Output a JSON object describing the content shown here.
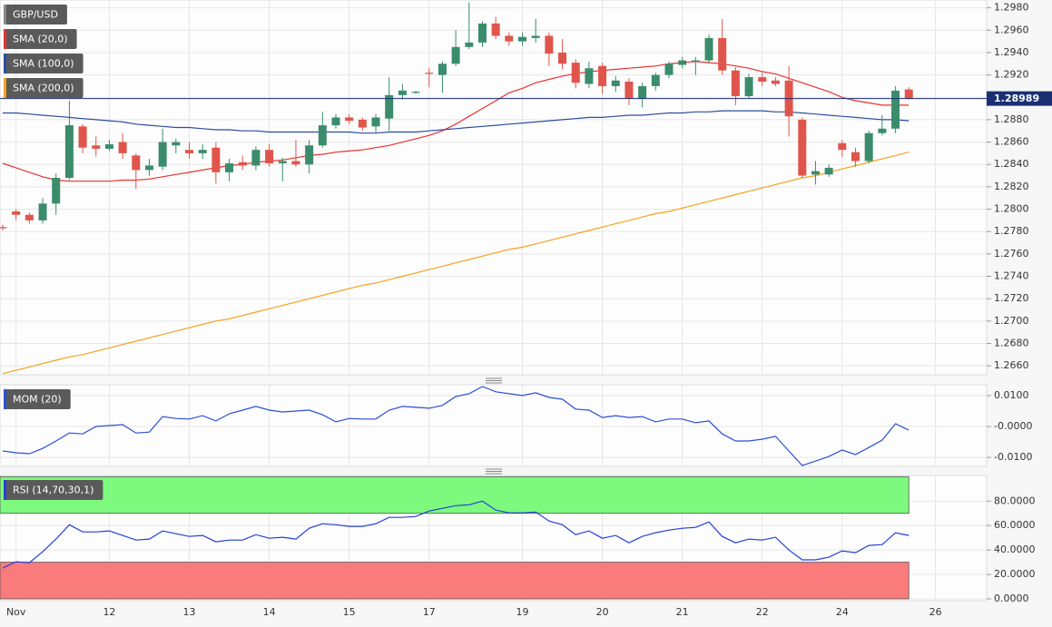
{
  "chart_data": [
    {
      "type": "candlestick",
      "name": "GBP/USD",
      "up_color": "#3b8c6c",
      "down_color": "#e0554b",
      "last_color": "#1b2f73",
      "categories": [
        null,
        "Nov",
        null,
        null,
        null,
        null,
        null,
        null,
        "12",
        null,
        null,
        null,
        null,
        null,
        "13",
        null,
        null,
        null,
        null,
        null,
        "14",
        null,
        null,
        null,
        null,
        null,
        "15",
        null,
        null,
        null,
        null,
        null,
        "17",
        null,
        null,
        null,
        null,
        null,
        null,
        "19",
        null,
        null,
        null,
        null,
        null,
        "20",
        null,
        null,
        null,
        null,
        null,
        "21",
        null,
        null,
        null,
        null,
        null,
        "22",
        null,
        null,
        null,
        null,
        null,
        "24",
        null,
        null,
        null,
        null,
        null,
        null,
        "26"
      ],
      "open": [
        1.2784,
        1.2798,
        1.2795,
        1.279,
        1.2805,
        1.2828,
        1.2874,
        1.2857,
        1.2854,
        1.286,
        1.2848,
        1.2835,
        1.2838,
        1.2857,
        1.2853,
        1.285,
        1.2855,
        1.2833,
        1.2842,
        1.2839,
        1.2853,
        1.2841,
        1.2843,
        1.284,
        1.2857,
        1.2875,
        1.2882,
        1.288,
        1.2874,
        1.2881,
        1.2902,
        1.2904,
        1.2922,
        1.292,
        1.293,
        1.2945,
        1.2949,
        1.2966,
        1.2955,
        1.295,
        1.2953,
        1.2955,
        1.294,
        1.2931,
        1.2912,
        1.2928,
        1.291,
        1.2914,
        1.2899,
        1.291,
        1.292,
        1.2929,
        1.2932,
        1.2933,
        1.2953,
        1.2924,
        1.2901,
        1.2918,
        1.2915,
        1.2915,
        1.288,
        1.2831,
        1.2831,
        1.2859,
        1.2851,
        1.2843,
        1.2868,
        1.2872,
        1.2907,
        null,
        null
      ],
      "high": [
        1.2786,
        1.28,
        1.2797,
        1.281,
        1.2832,
        1.2897,
        1.2876,
        1.2865,
        1.2862,
        1.2868,
        1.285,
        1.2845,
        1.2872,
        1.2863,
        1.286,
        1.2858,
        1.286,
        1.2845,
        1.2848,
        1.2856,
        1.2858,
        1.2846,
        1.2862,
        1.2862,
        1.2887,
        1.2885,
        1.2885,
        1.2882,
        1.2885,
        1.2918,
        1.2912,
        1.2906,
        1.2926,
        1.2932,
        1.296,
        1.2985,
        1.2968,
        1.2972,
        1.2958,
        1.2958,
        1.297,
        1.2958,
        1.2952,
        1.2934,
        1.2932,
        1.2931,
        1.2919,
        1.2917,
        1.2913,
        1.2922,
        1.2932,
        1.2936,
        1.2936,
        1.2956,
        1.297,
        1.2927,
        1.2921,
        1.2922,
        1.2918,
        1.2928,
        1.2882,
        1.2843,
        1.284,
        1.2862,
        1.2855,
        1.287,
        1.2884,
        1.291,
        1.2909,
        null,
        null
      ],
      "low": [
        1.2781,
        1.279,
        1.2787,
        1.2787,
        1.2795,
        1.2826,
        1.285,
        1.2847,
        1.2852,
        1.2845,
        1.2818,
        1.283,
        1.2835,
        1.285,
        1.2845,
        1.2845,
        1.2823,
        1.2825,
        1.2835,
        1.2835,
        1.2838,
        1.2825,
        1.2838,
        1.2832,
        1.2855,
        1.2872,
        1.2876,
        1.287,
        1.2868,
        1.287,
        1.2898,
        1.2903,
        1.2909,
        1.2904,
        1.2928,
        1.2943,
        1.2945,
        1.2952,
        1.2946,
        1.2946,
        1.2949,
        1.2928,
        1.2925,
        1.2908,
        1.2908,
        1.2903,
        1.2905,
        1.2893,
        1.2891,
        1.2906,
        1.2917,
        1.2926,
        1.292,
        1.293,
        1.292,
        1.2893,
        1.2899,
        1.291,
        1.291,
        1.2865,
        1.2828,
        1.2822,
        1.2829,
        1.2847,
        1.2838,
        1.2841,
        1.2866,
        1.2868,
        1.2898,
        null,
        null
      ],
      "close": [
        1.2783,
        1.2795,
        1.279,
        1.2805,
        1.2828,
        1.2875,
        1.2855,
        1.2854,
        1.2858,
        1.285,
        1.2835,
        1.2839,
        1.286,
        1.286,
        1.285,
        1.2853,
        1.2833,
        1.2841,
        1.2839,
        1.2853,
        1.2841,
        1.2843,
        1.284,
        1.2857,
        1.2875,
        1.2882,
        1.2879,
        1.2873,
        1.2882,
        1.2902,
        1.2906,
        1.2905,
        1.2921,
        1.293,
        1.2945,
        1.2949,
        1.2966,
        1.2955,
        1.295,
        1.2954,
        1.2955,
        1.2939,
        1.293,
        1.2913,
        1.2926,
        1.291,
        1.2915,
        1.2899,
        1.291,
        1.292,
        1.293,
        1.2933,
        1.2933,
        1.2953,
        1.2924,
        1.2901,
        1.2918,
        1.2914,
        1.2912,
        1.2883,
        1.283,
        1.2834,
        1.2837,
        1.2853,
        1.2843,
        1.2868,
        1.2872,
        1.2906,
        1.28989,
        null,
        null
      ],
      "series": [
        {
          "name": "SMA (20,0)",
          "color": "#e8322f",
          "values": [
            1.2841,
            1.2837,
            1.2833,
            1.2829,
            1.2826,
            1.2825,
            1.2825,
            1.2825,
            1.2825,
            1.2826,
            1.2826,
            1.2827,
            1.2829,
            1.2831,
            1.2833,
            1.2835,
            1.2837,
            1.2839,
            1.284,
            1.2842,
            1.2843,
            1.2844,
            1.2846,
            1.2848,
            1.2849,
            1.2851,
            1.2852,
            1.2853,
            1.2855,
            1.2857,
            1.286,
            1.2863,
            1.2866,
            1.287,
            1.2876,
            1.2883,
            1.289,
            1.2897,
            1.2904,
            1.2908,
            1.2913,
            1.2916,
            1.2919,
            1.2921,
            1.2923,
            1.2924,
            1.2925,
            1.2926,
            1.2927,
            1.2928,
            1.293,
            1.2931,
            1.2932,
            1.2931,
            1.293,
            1.2928,
            1.2926,
            1.2923,
            1.2921,
            1.2917,
            1.2913,
            1.2909,
            1.2905,
            1.29,
            1.2897,
            1.2895,
            1.2893,
            1.2893,
            1.2893,
            null,
            null
          ]
        },
        {
          "name": "SMA (100,0)",
          "color": "#2b4ea2",
          "values": [
            1.2886,
            1.2886,
            1.2885,
            1.2884,
            1.2883,
            1.2882,
            1.2881,
            1.288,
            1.2879,
            1.2878,
            1.2876,
            1.2875,
            1.2874,
            1.2873,
            1.2873,
            1.2872,
            1.2871,
            1.2871,
            1.287,
            1.287,
            1.2869,
            1.2869,
            1.2869,
            1.2869,
            1.2869,
            1.2869,
            1.2869,
            1.2868,
            1.2868,
            1.2869,
            1.2869,
            1.2869,
            1.287,
            1.2871,
            1.2872,
            1.2873,
            1.2874,
            1.2875,
            1.2876,
            1.2877,
            1.2878,
            1.2879,
            1.288,
            1.2881,
            1.2882,
            1.2882,
            1.2883,
            1.2884,
            1.2884,
            1.2885,
            1.2886,
            1.2886,
            1.2887,
            1.2887,
            1.2888,
            1.2888,
            1.2888,
            1.2888,
            1.2887,
            1.2887,
            1.2886,
            1.2885,
            1.2884,
            1.2883,
            1.2882,
            1.2881,
            1.288,
            1.288,
            1.2879,
            null,
            null
          ]
        },
        {
          "name": "SMA (200,0)",
          "color": "#f5a11e",
          "values": [
            1.2653,
            1.2656,
            1.2659,
            1.2662,
            1.2665,
            1.2668,
            1.267,
            1.2673,
            1.2676,
            1.2679,
            1.2682,
            1.2685,
            1.2688,
            1.2691,
            1.2694,
            1.2697,
            1.27,
            1.2702,
            1.2705,
            1.2708,
            1.2711,
            1.2714,
            1.2717,
            1.272,
            1.2723,
            1.2726,
            1.2729,
            1.2732,
            1.2734,
            1.2737,
            1.274,
            1.2743,
            1.2746,
            1.2749,
            1.2752,
            1.2755,
            1.2758,
            1.2761,
            1.2764,
            1.2766,
            1.2769,
            1.2772,
            1.2775,
            1.2778,
            1.2781,
            1.2784,
            1.2787,
            1.279,
            1.2793,
            1.2796,
            1.2798,
            1.2801,
            1.2804,
            1.2807,
            1.281,
            1.2813,
            1.2816,
            1.2819,
            1.2822,
            1.2825,
            1.2828,
            1.283,
            1.2833,
            1.2836,
            1.2839,
            1.2842,
            1.2845,
            1.2848,
            1.2851,
            null,
            null
          ]
        }
      ],
      "ylim": [
        1.2652,
        1.2987
      ],
      "yticks": [
        {
          "value": 1.266,
          "label": "1.2660"
        },
        {
          "value": 1.268,
          "label": "1.2680"
        },
        {
          "value": 1.27,
          "label": "1.2700"
        },
        {
          "value": 1.272,
          "label": "1.2720"
        },
        {
          "value": 1.274,
          "label": "1.2740"
        },
        {
          "value": 1.276,
          "label": "1.2760"
        },
        {
          "value": 1.278,
          "label": "1.2780"
        },
        {
          "value": 1.28,
          "label": "1.2800"
        },
        {
          "value": 1.282,
          "label": "1.2820"
        },
        {
          "value": 1.284,
          "label": "1.2840"
        },
        {
          "value": 1.286,
          "label": "1.2860"
        },
        {
          "value": 1.288,
          "label": "1.2880"
        },
        {
          "value": 1.29,
          "label": "1.2900"
        },
        {
          "value": 1.292,
          "label": "1.2920"
        },
        {
          "value": 1.294,
          "label": "1.2940"
        },
        {
          "value": 1.296,
          "label": "1.2960"
        },
        {
          "value": 1.298,
          "label": "1.2980"
        }
      ],
      "grid": true
    },
    {
      "type": "line",
      "series": [
        {
          "name": "MOM (20)",
          "color": "#2c4fd6",
          "values": [
            -0.0079,
            -0.0085,
            -0.0088,
            -0.0071,
            -0.0047,
            -0.0021,
            -0.0024,
            0,
            0.0003,
            0.0006,
            -0.0021,
            -0.0018,
            0.0032,
            0.0026,
            0.0024,
            0.0035,
            0.0018,
            0.0041,
            0.0053,
            0.0065,
            0.0053,
            0.0047,
            0.005,
            0.0053,
            0.0038,
            0.0015,
            0.0026,
            0.0024,
            0.0024,
            0.0053,
            0.0065,
            0.0062,
            0.0059,
            0.0068,
            0.0097,
            0.0106,
            0.0129,
            0.0112,
            0.0106,
            0.01,
            0.0109,
            0.0094,
            0.0088,
            0.0056,
            0.0053,
            0.0029,
            0.0035,
            0.0029,
            0.0032,
            0.0015,
            0.0024,
            0.0024,
            0.0012,
            0.0018,
            -0.0024,
            -0.0047,
            -0.0047,
            -0.0041,
            -0.0032,
            -0.0079,
            -0.0126,
            -0.0112,
            -0.0097,
            -0.0076,
            -0.0091,
            -0.0068,
            -0.0044,
            0.0009,
            -0.0012,
            null,
            null
          ]
        }
      ],
      "ylim": [
        -0.0129,
        0.0135
      ],
      "yticks": [
        {
          "value": -0.01,
          "label": "-0.0100"
        },
        {
          "value": 0,
          "label": "-0.0000"
        },
        {
          "value": 0.01,
          "label": "0.0100"
        }
      ],
      "grid": true
    },
    {
      "type": "line",
      "series": [
        {
          "name": "RSI (14,70,30,1)",
          "color": "#2340d8",
          "values": [
            25.2,
            30.4,
            29.6,
            38.5,
            48.9,
            60.7,
            54.8,
            54.8,
            55.6,
            51.9,
            48.1,
            48.9,
            55.6,
            53.3,
            51.1,
            51.9,
            46.7,
            48.1,
            48.1,
            52.6,
            49.6,
            50.4,
            48.9,
            57.8,
            61.5,
            60.7,
            59.3,
            59.3,
            61.5,
            66.7,
            66.7,
            67.4,
            71.9,
            74.1,
            76.3,
            77.0,
            80.0,
            72.6,
            70.4,
            70.4,
            71.1,
            63.7,
            60.7,
            52.6,
            55.6,
            49.6,
            51.9,
            45.9,
            51.1,
            54.1,
            56.3,
            57.8,
            58.5,
            63.0,
            51.1,
            45.9,
            48.9,
            48.1,
            50.4,
            40.0,
            31.9,
            31.9,
            34.1,
            39.3,
            37.8,
            43.7,
            44.4,
            54.1,
            51.9,
            null,
            null
          ]
        }
      ],
      "bands": [
        {
          "from": 70,
          "to": 100,
          "color": "#7dfa7d"
        },
        {
          "from": 0,
          "to": 30,
          "color": "#fa7b7b"
        }
      ],
      "ylim": [
        -1.5,
        101
      ],
      "yticks": [
        {
          "value": 0,
          "label": "0.0000"
        },
        {
          "value": 20,
          "label": "20.0000"
        },
        {
          "value": 40,
          "label": "40.0000"
        },
        {
          "value": 60,
          "label": "60.0000"
        },
        {
          "value": 80,
          "label": "80.0000"
        }
      ],
      "grid": true
    }
  ]
}
